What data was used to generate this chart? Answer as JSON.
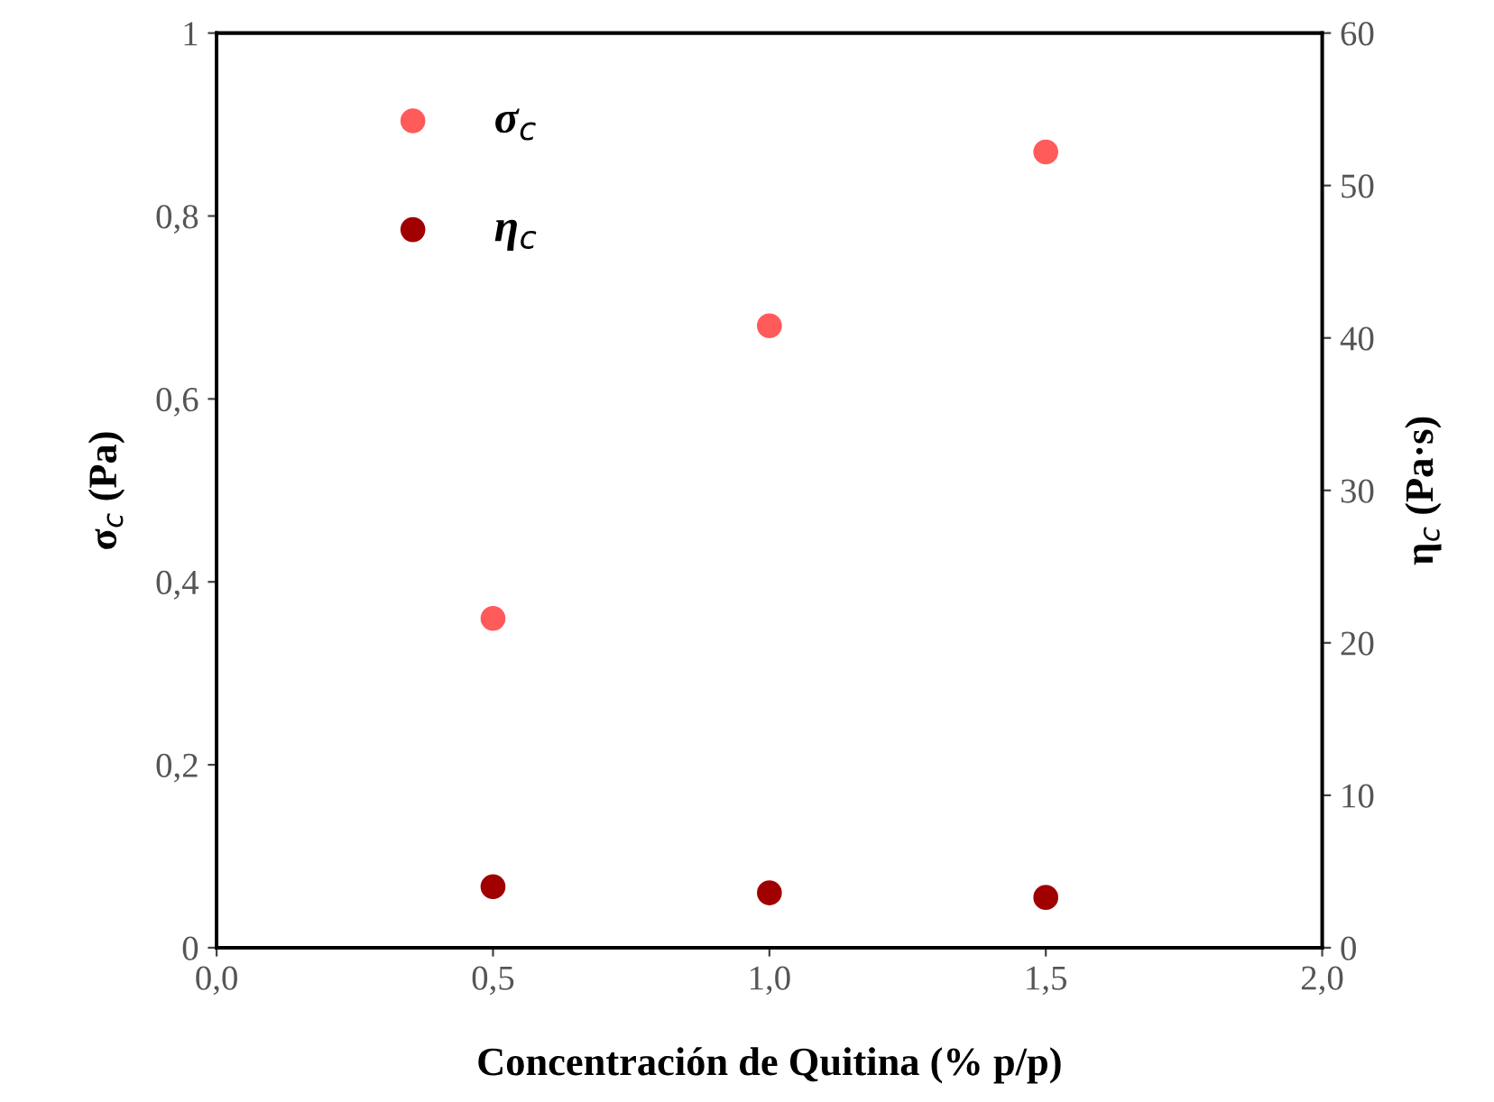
{
  "chart_data": {
    "type": "scatter",
    "xlabel": "Concentración de Quitina (% p/p)",
    "ylabel": "σ$_{c}$ (Pa)",
    "y2label": "η$_{c}$ (Pa·s)",
    "x": [
      0.5,
      1.0,
      1.5
    ],
    "series": [
      {
        "name": "σ$_{c}$",
        "color": "#ff5b5b",
        "values": [
          0.36,
          0.68,
          0.87
        ]
      },
      {
        "name": "η$_{c}$",
        "color": "#a00000",
        "values": [
          4.0,
          3.6,
          3.3
        ],
        "axis": "y2"
      }
    ],
    "xlim": [
      0,
      2
    ],
    "xticks": [
      {
        "value": 0,
        "label": "0,0"
      },
      {
        "value": 0.5,
        "label": "0,5"
      },
      {
        "value": 1,
        "label": "1,0"
      },
      {
        "value": 1.5,
        "label": "1,5"
      },
      {
        "value": 2,
        "label": "2,0"
      }
    ],
    "ylim": [
      0,
      1
    ],
    "yticks": [
      0,
      {
        "value": 0.2,
        "label": "0,2"
      },
      {
        "value": 0.4,
        "label": "0,4"
      },
      {
        "value": 0.6,
        "label": "0,6"
      },
      {
        "value": 0.8,
        "label": "0,8"
      },
      1
    ],
    "y2lim": [
      0,
      60
    ],
    "y2ticks": [
      0,
      10,
      20,
      30,
      40,
      50,
      60
    ],
    "marker": "circle",
    "legend": "top left",
    "grid": false
  }
}
